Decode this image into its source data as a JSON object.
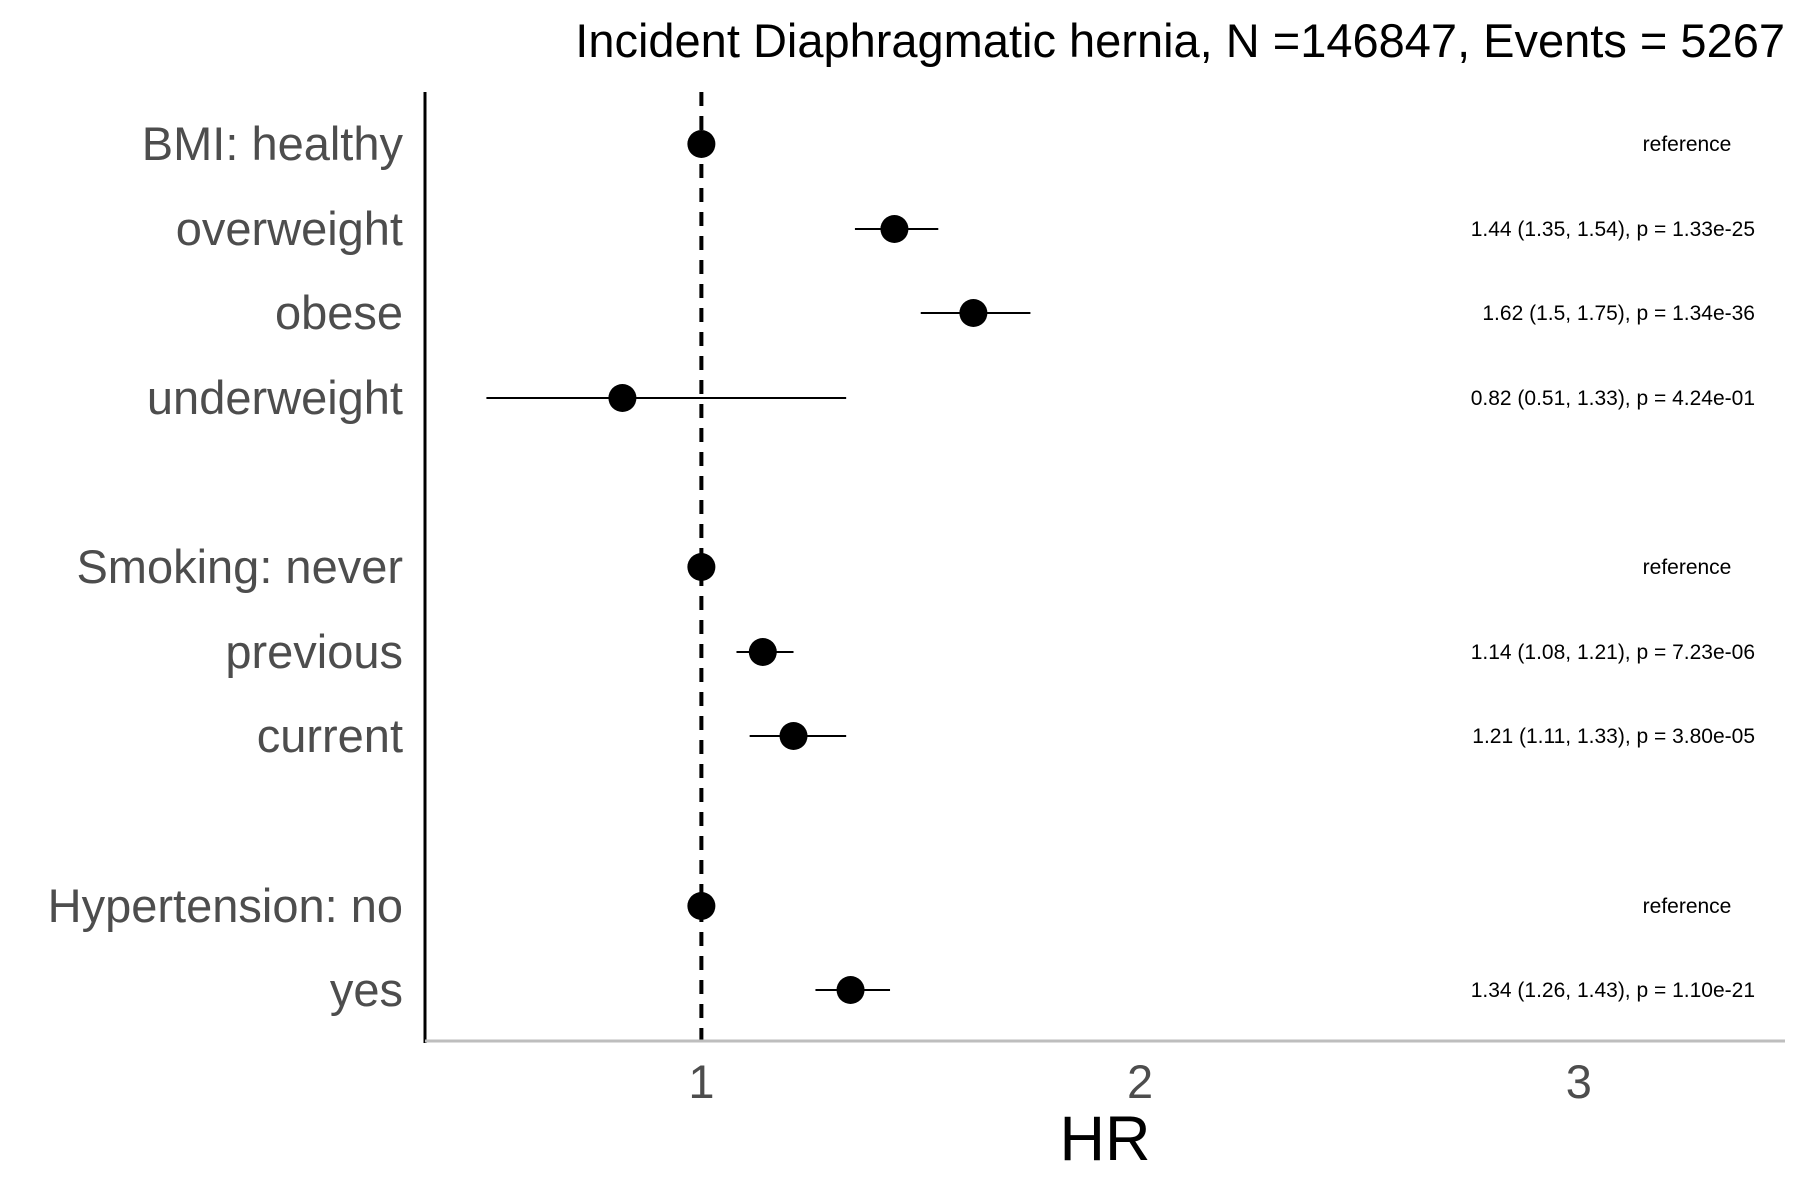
{
  "chart_data": {
    "type": "scatter",
    "title": "Incident Diaphragmatic hernia, N =146847, Events = 5267",
    "xlabel": "HR",
    "ylabel": "",
    "xlim": [
      0.37,
      3.47
    ],
    "x_ticks": [
      1,
      2,
      3
    ],
    "x_tick_labels": [
      "1",
      "2",
      "3"
    ],
    "reference_line": 1,
    "grid": false,
    "legend": "none",
    "rows": [
      {
        "label": "BMI: healthy",
        "hr": 1.0,
        "lo": null,
        "hi": null,
        "annotation": "reference"
      },
      {
        "label": "overweight",
        "hr": 1.44,
        "lo": 1.35,
        "hi": 1.54,
        "annotation": "1.44 (1.35, 1.54), p = 1.33e-25"
      },
      {
        "label": "obese",
        "hr": 1.62,
        "lo": 1.5,
        "hi": 1.75,
        "annotation": "1.62 (1.5, 1.75), p = 1.34e-36"
      },
      {
        "label": "underweight",
        "hr": 0.82,
        "lo": 0.51,
        "hi": 1.33,
        "annotation": "0.82 (0.51, 1.33), p = 4.24e-01"
      },
      {
        "label": "Smoking: never",
        "hr": 1.0,
        "lo": null,
        "hi": null,
        "annotation": "reference"
      },
      {
        "label": "previous",
        "hr": 1.14,
        "lo": 1.08,
        "hi": 1.21,
        "annotation": "1.14 (1.08, 1.21), p = 7.23e-06"
      },
      {
        "label": "current",
        "hr": 1.21,
        "lo": 1.11,
        "hi": 1.33,
        "annotation": "1.21 (1.11, 1.33), p = 3.80e-05"
      },
      {
        "label": "Hypertension: no",
        "hr": 1.0,
        "lo": null,
        "hi": null,
        "annotation": "reference"
      },
      {
        "label": "yes",
        "hr": 1.34,
        "lo": 1.26,
        "hi": 1.43,
        "annotation": "1.34 (1.26, 1.43), p = 1.10e-21"
      }
    ]
  },
  "colors": {
    "point": "#000000",
    "reference_line": "#000000",
    "y_axis": "#000000",
    "x_axis": "#bebebe",
    "label_text": "#4d4d4d"
  }
}
